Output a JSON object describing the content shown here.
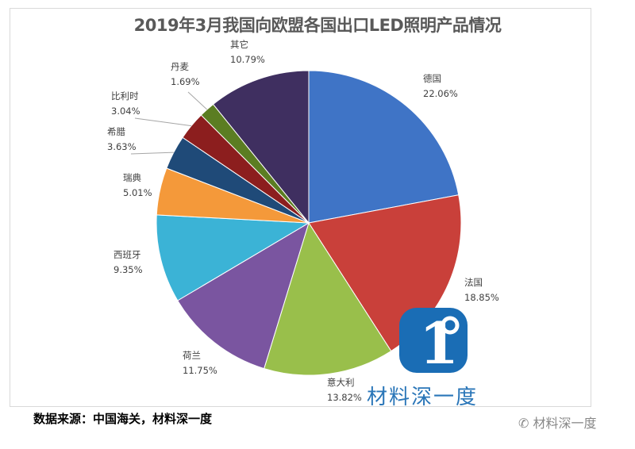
{
  "chart_data": {
    "type": "pie",
    "title": "2019年3月我国向欧盟各国出口LED照明产品情况",
    "start": "top",
    "direction": "clockwise",
    "slices": [
      {
        "label": "德国",
        "value": 22.06,
        "pct": "22.06%",
        "color": "#3f74c6"
      },
      {
        "label": "法国",
        "value": 18.85,
        "pct": "18.85%",
        "color": "#c9403a"
      },
      {
        "label": "意大利",
        "value": 13.82,
        "pct": "13.82%",
        "color": "#99bf4b"
      },
      {
        "label": "荷兰",
        "value": 11.75,
        "pct": "11.75%",
        "color": "#7a55a0"
      },
      {
        "label": "西班牙",
        "value": 9.35,
        "pct": "9.35%",
        "color": "#3bb3d6"
      },
      {
        "label": "瑞典",
        "value": 5.01,
        "pct": "5.01%",
        "color": "#f4993a"
      },
      {
        "label": "希腊",
        "value": 3.63,
        "pct": "3.63%",
        "color": "#1f4a78"
      },
      {
        "label": "比利时",
        "value": 3.04,
        "pct": "3.04%",
        "color": "#8c1e1e"
      },
      {
        "label": "丹麦",
        "value": 1.69,
        "pct": "1.69%",
        "color": "#5b7d22"
      },
      {
        "label": "其它",
        "value": 10.79,
        "pct": "10.79%",
        "color": "#3f2f60"
      }
    ]
  },
  "footer": {
    "source": "数据来源：中国海关，材料深一度",
    "watermark": "材料深一度",
    "logo_text": "材料深一度"
  }
}
